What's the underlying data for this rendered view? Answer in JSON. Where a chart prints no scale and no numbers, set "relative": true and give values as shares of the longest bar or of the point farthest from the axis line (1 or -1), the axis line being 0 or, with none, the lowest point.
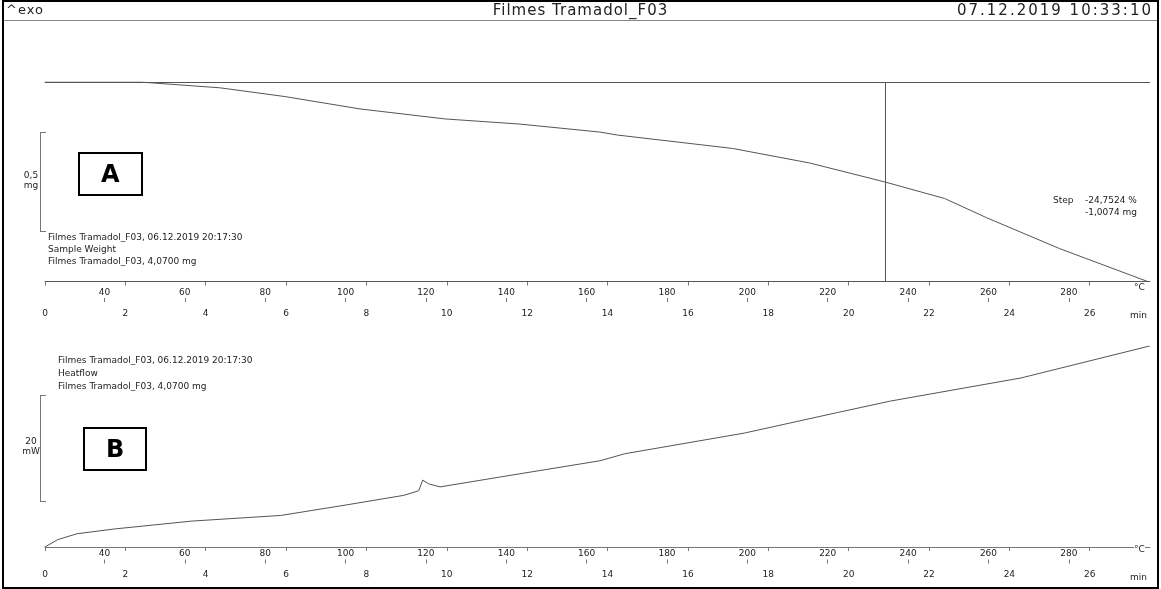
{
  "chart_data": [
    {
      "type": "line",
      "title": "Filmes Tramadol_F03",
      "xlabel": "min",
      "x2label": "°C",
      "ylabel": "0,5 mg",
      "relative": true,
      "grid": false,
      "marker": "none",
      "line_style": "solid",
      "xlim": [
        0,
        27.5
      ],
      "xticks": [
        0,
        2,
        4,
        6,
        8,
        10,
        12,
        14,
        16,
        18,
        20,
        22,
        24,
        26
      ],
      "x2lim": [
        25.2,
        300.2
      ],
      "x2ticks": [
        40,
        60,
        80,
        100,
        120,
        140,
        160,
        180,
        200,
        220,
        240,
        260,
        280
      ],
      "annotations": [
        "^exo",
        "07.12.2019 10:33:10",
        "A",
        "Filmes Tramadol_F03, 06.12.2019 20:17:30",
        "Sample Weight",
        "Filmes Tramadol_F03, 4,0700 mg",
        "Step",
        "-24,7524 %",
        "-1,0074 mg"
      ],
      "ref_lines": [
        {
          "axis": "y",
          "value": 1,
          "color": "#555555"
        },
        {
          "axis": "x",
          "value": 20.9,
          "color": "#555555"
        },
        {
          "axis": "y",
          "value": 0,
          "color": "#555555"
        }
      ],
      "series": [
        {
          "color": "#555555",
          "x": [
            0,
            2.36,
            4.35,
            5.97,
            7.84,
            9.95,
            11.82,
            13.81,
            14.25,
            17.11,
            19.03,
            20.9,
            22.39,
            23.43,
            25.25,
            27.44
          ],
          "values": [
            1,
            1,
            0.971,
            0.927,
            0.865,
            0.815,
            0.789,
            0.749,
            0.734,
            0.667,
            0.594,
            0.499,
            0.416,
            0.32,
            0.165,
            0
          ]
        }
      ]
    },
    {
      "type": "line",
      "xlabel": "min",
      "x2label": "°C",
      "ylabel": "20 mW",
      "relative": true,
      "grid": false,
      "marker": "none",
      "line_style": "solid",
      "xlim": [
        0,
        27.5
      ],
      "xticks": [
        0,
        2,
        4,
        6,
        8,
        10,
        12,
        14,
        16,
        18,
        20,
        22,
        24,
        26
      ],
      "x2lim": [
        25.2,
        300.2
      ],
      "x2ticks": [
        40,
        60,
        80,
        100,
        120,
        140,
        160,
        180,
        200,
        220,
        240,
        260,
        280
      ],
      "annotations": [
        "B",
        "Filmes Tramadol_F03, 06.12.2019 20:17:30",
        "Heatflow",
        "Filmes Tramadol_F03, 4,0700 mg"
      ],
      "series": [
        {
          "color": "#555555",
          "x": [
            0,
            0.32,
            0.8,
            1.74,
            3.66,
            5.87,
            7.49,
            8.93,
            9.3,
            9.4,
            9.55,
            9.83,
            11.32,
            13.81,
            14.43,
            17.41,
            19.7,
            21.04,
            24.29,
            27.49
          ],
          "values": [
            0,
            0.037,
            0.066,
            0.09,
            0.129,
            0.157,
            0.209,
            0.257,
            0.28,
            0.333,
            0.314,
            0.299,
            0.348,
            0.429,
            0.464,
            0.567,
            0.668,
            0.726,
            0.841,
            1
          ]
        }
      ]
    }
  ]
}
